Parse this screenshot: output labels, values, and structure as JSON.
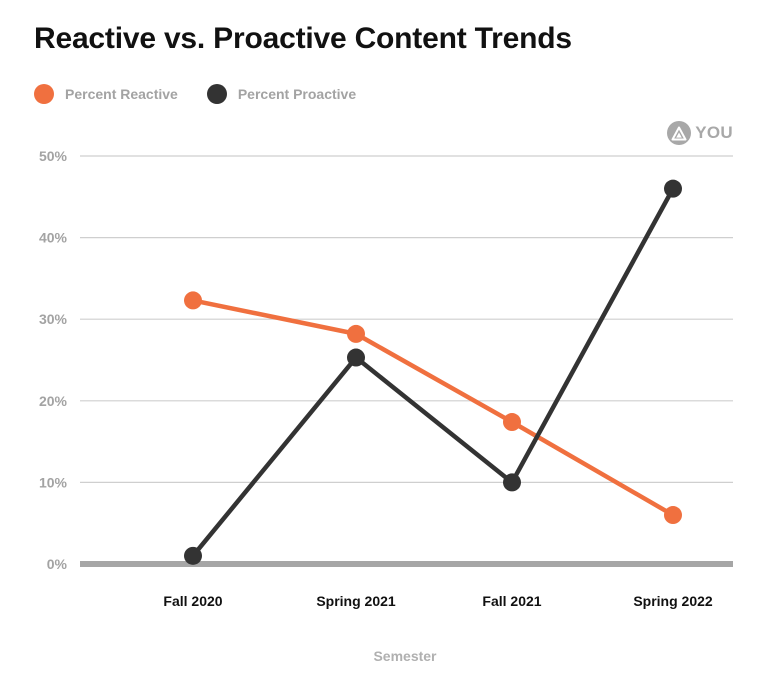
{
  "chart_data": {
    "type": "line",
    "title": "Reactive vs. Proactive Content Trends",
    "xlabel": "Semester",
    "ylabel": "",
    "categories": [
      "Fall 2020",
      "Spring 2021",
      "Fall 2021",
      "Spring 2022"
    ],
    "series": [
      {
        "name": "Percent Reactive",
        "color": "#F0703F",
        "values": [
          32.3,
          28.2,
          17.4,
          6.0
        ]
      },
      {
        "name": "Percent Proactive",
        "color": "#333333",
        "values": [
          1.0,
          25.3,
          10.0,
          46.0
        ]
      }
    ],
    "ylim": [
      0,
      50
    ],
    "yticks": [
      0,
      10,
      20,
      30,
      40,
      50
    ],
    "ytick_labels": [
      "0%",
      "10%",
      "20%",
      "30%",
      "40%",
      "50%"
    ],
    "grid": true,
    "legend_position": "top-left"
  },
  "branding": {
    "text": "YOU",
    "icon": "triangle-logo-icon",
    "color": "#A8A8A8"
  }
}
